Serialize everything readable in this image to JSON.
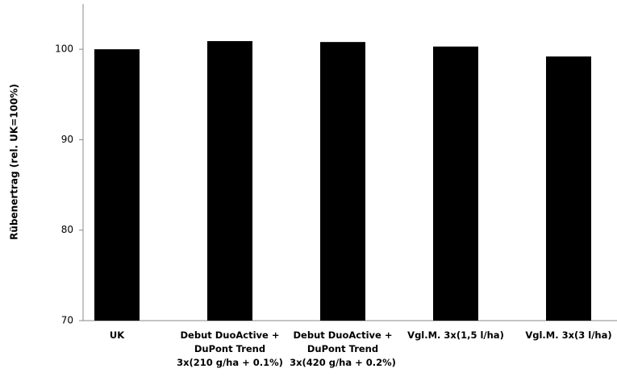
{
  "chart_data": {
    "type": "bar",
    "y_label": "Rübenertrag (rel. UK=100%)",
    "categories": [
      [
        "UK"
      ],
      [
        "Debut DuoActive +",
        "DuPont Trend",
        "3x(210 g/ha + 0.1%)"
      ],
      [
        "Debut DuoActive +",
        "DuPont Trend",
        "3x(420 g/ha + 0.2%)"
      ],
      [
        "Vgl.M. 3x(1,5 l/ha)"
      ],
      [
        "Vgl.M. 3x(3 l/ha)"
      ]
    ],
    "values": [
      100,
      100.9,
      100.8,
      100.3,
      99.2
    ],
    "color": "#000000",
    "ylim": [
      70,
      105
    ],
    "yticks": [
      70,
      80,
      90,
      100
    ],
    "grid": false
  }
}
